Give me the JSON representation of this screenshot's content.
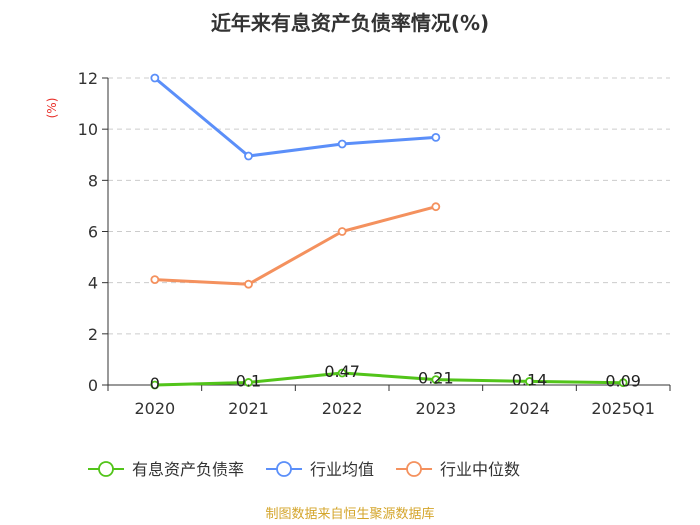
{
  "chart_data": {
    "type": "line",
    "title": "近年来有息资产负债率情况(%)",
    "ylabel": "(%)",
    "xlabel": "",
    "categories": [
      "2020",
      "2021",
      "2022",
      "2023",
      "2024",
      "2025Q1"
    ],
    "yticks": [
      "0",
      "2",
      "4",
      "6",
      "8",
      "10",
      "12"
    ],
    "ylim": [
      0,
      12
    ],
    "grid": true,
    "legend_position": "bottom",
    "series": [
      {
        "name": "有息资产负债率",
        "color": "#52c41a",
        "values": [
          0,
          0.1,
          0.47,
          0.21,
          0.14,
          0.09
        ],
        "labels": [
          "0",
          "0.1",
          "0.47",
          "0.21",
          "0.14",
          "0.09"
        ]
      },
      {
        "name": "行业均值",
        "color": "#5b8ff9",
        "values": [
          12.0,
          8.95,
          9.42,
          9.68,
          null,
          null
        ]
      },
      {
        "name": "行业中位数",
        "color": "#f4915e",
        "values": [
          4.12,
          3.94,
          6.0,
          6.97,
          null,
          null
        ]
      }
    ],
    "source": "制图数据来自恒生聚源数据库",
    "unit_color": "#e8302a",
    "source_color": "#d4a52b"
  }
}
